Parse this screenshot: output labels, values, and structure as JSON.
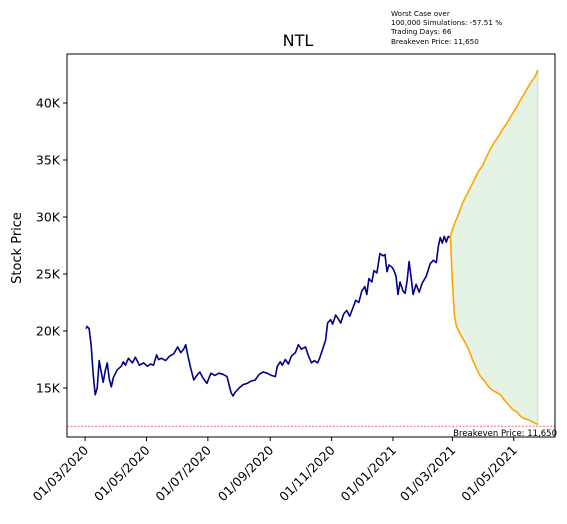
{
  "chart_data": {
    "type": "line",
    "title": "NTL",
    "xlabel": "",
    "ylabel": "Stock Price",
    "x_ticks": [
      "01/03/2020",
      "01/05/2020",
      "01/07/2020",
      "01/09/2020",
      "01/11/2020",
      "01/01/2021",
      "01/03/2021",
      "01/05/2021"
    ],
    "y_ticks": [
      "15K",
      "20K",
      "25K",
      "30K",
      "35K",
      "40K"
    ],
    "y_tick_values": [
      15000,
      20000,
      25000,
      30000,
      35000,
      40000
    ],
    "ylim": [
      10700,
      44300
    ],
    "xlim": [
      "2020-02-12",
      "2021-06-11"
    ],
    "grid": false,
    "annotations": {
      "lines": [
        "Worst Case over",
        "100,000 Simulations: -57.51 %",
        "Trading Days: 66",
        "Breakeven Price: 11,650"
      ]
    },
    "breakeven": {
      "value": 11650,
      "label": "Breakeven Price: 11,650",
      "color": "#d62728"
    },
    "series": [
      {
        "name": "",
        "role": "historical",
        "color": "#00008b",
        "points": [
          [
            "2020-03-02",
            20200
          ],
          [
            "2020-03-03",
            20400
          ],
          [
            "2020-03-05",
            20200
          ],
          [
            "2020-03-07",
            18800
          ],
          [
            "2020-03-09",
            16200
          ],
          [
            "2020-03-11",
            14400
          ],
          [
            "2020-03-13",
            15000
          ],
          [
            "2020-03-15",
            17400
          ],
          [
            "2020-03-17",
            16400
          ],
          [
            "2020-03-19",
            15500
          ],
          [
            "2020-03-21",
            16500
          ],
          [
            "2020-03-23",
            17200
          ],
          [
            "2020-03-25",
            15800
          ],
          [
            "2020-03-27",
            15100
          ],
          [
            "2020-03-29",
            15900
          ],
          [
            "2020-04-02",
            16600
          ],
          [
            "2020-04-06",
            16900
          ],
          [
            "2020-04-08",
            17300
          ],
          [
            "2020-04-10",
            17000
          ],
          [
            "2020-04-13",
            17600
          ],
          [
            "2020-04-17",
            17200
          ],
          [
            "2020-04-20",
            17700
          ],
          [
            "2020-04-24",
            17000
          ],
          [
            "2020-04-28",
            17200
          ],
          [
            "2020-05-02",
            16900
          ],
          [
            "2020-05-05",
            17100
          ],
          [
            "2020-05-08",
            17000
          ],
          [
            "2020-05-11",
            17900
          ],
          [
            "2020-05-13",
            17500
          ],
          [
            "2020-05-16",
            17600
          ],
          [
            "2020-05-20",
            17400
          ],
          [
            "2020-05-24",
            17800
          ],
          [
            "2020-05-28",
            18000
          ],
          [
            "2020-06-01",
            18600
          ],
          [
            "2020-06-04",
            18100
          ],
          [
            "2020-06-07",
            18400
          ],
          [
            "2020-06-09",
            18800
          ],
          [
            "2020-06-11",
            17900
          ],
          [
            "2020-06-14",
            16700
          ],
          [
            "2020-06-17",
            15700
          ],
          [
            "2020-06-20",
            16100
          ],
          [
            "2020-06-23",
            16400
          ],
          [
            "2020-06-26",
            15900
          ],
          [
            "2020-06-30",
            15400
          ],
          [
            "2020-07-04",
            16300
          ],
          [
            "2020-07-08",
            16100
          ],
          [
            "2020-07-12",
            16300
          ],
          [
            "2020-07-16",
            16200
          ],
          [
            "2020-07-20",
            16000
          ],
          [
            "2020-07-24",
            14600
          ],
          [
            "2020-07-26",
            14300
          ],
          [
            "2020-07-28",
            14600
          ],
          [
            "2020-08-01",
            15000
          ],
          [
            "2020-08-05",
            15300
          ],
          [
            "2020-08-09",
            15400
          ],
          [
            "2020-08-13",
            15600
          ],
          [
            "2020-08-17",
            15700
          ],
          [
            "2020-08-21",
            16200
          ],
          [
            "2020-08-25",
            16400
          ],
          [
            "2020-08-29",
            16300
          ],
          [
            "2020-09-02",
            16100
          ],
          [
            "2020-09-06",
            16000
          ],
          [
            "2020-09-08",
            16900
          ],
          [
            "2020-09-11",
            17300
          ],
          [
            "2020-09-13",
            17000
          ],
          [
            "2020-09-16",
            17500
          ],
          [
            "2020-09-19",
            17100
          ],
          [
            "2020-09-22",
            17800
          ],
          [
            "2020-09-26",
            18100
          ],
          [
            "2020-09-29",
            18800
          ],
          [
            "2020-10-02",
            18400
          ],
          [
            "2020-10-06",
            18600
          ],
          [
            "2020-10-09",
            17800
          ],
          [
            "2020-10-12",
            17200
          ],
          [
            "2020-10-15",
            17400
          ],
          [
            "2020-10-18",
            17200
          ],
          [
            "2020-10-20",
            17600
          ],
          [
            "2020-10-23",
            18400
          ],
          [
            "2020-10-26",
            19200
          ],
          [
            "2020-10-28",
            20700
          ],
          [
            "2020-10-31",
            21000
          ],
          [
            "2020-11-02",
            20600
          ],
          [
            "2020-11-05",
            21400
          ],
          [
            "2020-11-08",
            21000
          ],
          [
            "2020-11-10",
            20700
          ],
          [
            "2020-11-13",
            21500
          ],
          [
            "2020-11-16",
            21800
          ],
          [
            "2020-11-19",
            21300
          ],
          [
            "2020-11-22",
            22000
          ],
          [
            "2020-11-25",
            22700
          ],
          [
            "2020-11-28",
            22500
          ],
          [
            "2020-12-01",
            23500
          ],
          [
            "2020-12-04",
            23900
          ],
          [
            "2020-12-06",
            23200
          ],
          [
            "2020-12-08",
            24600
          ],
          [
            "2020-12-11",
            24300
          ],
          [
            "2020-12-13",
            25300
          ],
          [
            "2020-12-16",
            25100
          ],
          [
            "2020-12-19",
            26800
          ],
          [
            "2020-12-22",
            26600
          ],
          [
            "2020-12-24",
            26700
          ],
          [
            "2020-12-26",
            25200
          ],
          [
            "2020-12-28",
            25800
          ],
          [
            "2020-12-31",
            25600
          ],
          [
            "2021-01-02",
            25300
          ],
          [
            "2021-01-04",
            24800
          ],
          [
            "2021-01-06",
            23200
          ],
          [
            "2021-01-08",
            24300
          ],
          [
            "2021-01-11",
            23500
          ],
          [
            "2021-01-13",
            23300
          ],
          [
            "2021-01-15",
            24400
          ],
          [
            "2021-01-17",
            26100
          ],
          [
            "2021-01-19",
            24700
          ],
          [
            "2021-01-21",
            23200
          ],
          [
            "2021-01-24",
            24100
          ],
          [
            "2021-01-27",
            23400
          ],
          [
            "2021-01-30",
            24200
          ],
          [
            "2021-02-03",
            24800
          ],
          [
            "2021-02-07",
            25900
          ],
          [
            "2021-02-10",
            26200
          ],
          [
            "2021-02-13",
            26000
          ],
          [
            "2021-02-15",
            27400
          ],
          [
            "2021-02-17",
            28200
          ],
          [
            "2021-02-19",
            27700
          ],
          [
            "2021-02-21",
            28300
          ],
          [
            "2021-02-23",
            27800
          ],
          [
            "2021-02-25",
            28300
          ],
          [
            "2021-02-27",
            28200
          ]
        ]
      },
      {
        "name": "",
        "role": "simulated-upper",
        "color": "#ffa500",
        "points": [
          [
            "2021-02-27",
            28300
          ],
          [
            "2021-03-03",
            29400
          ],
          [
            "2021-03-07",
            30200
          ],
          [
            "2021-03-11",
            31200
          ],
          [
            "2021-03-15",
            31900
          ],
          [
            "2021-03-19",
            32600
          ],
          [
            "2021-03-23",
            33300
          ],
          [
            "2021-03-27",
            34000
          ],
          [
            "2021-03-31",
            34500
          ],
          [
            "2021-04-04",
            35300
          ],
          [
            "2021-04-08",
            36000
          ],
          [
            "2021-04-12",
            36600
          ],
          [
            "2021-04-16",
            37100
          ],
          [
            "2021-04-20",
            37700
          ],
          [
            "2021-04-24",
            38200
          ],
          [
            "2021-04-28",
            38800
          ],
          [
            "2021-05-02",
            39400
          ],
          [
            "2021-05-06",
            40000
          ],
          [
            "2021-05-10",
            40600
          ],
          [
            "2021-05-14",
            41200
          ],
          [
            "2021-05-18",
            41800
          ],
          [
            "2021-05-22",
            42300
          ],
          [
            "2021-05-25",
            42900
          ]
        ]
      },
      {
        "name": "",
        "role": "simulated-lower",
        "color": "#ffa500",
        "points": [
          [
            "2021-02-27",
            28300
          ],
          [
            "2021-03-01",
            24200
          ],
          [
            "2021-03-03",
            21400
          ],
          [
            "2021-03-05",
            20400
          ],
          [
            "2021-03-09",
            19700
          ],
          [
            "2021-03-13",
            19100
          ],
          [
            "2021-03-17",
            18400
          ],
          [
            "2021-03-21",
            17500
          ],
          [
            "2021-03-25",
            16700
          ],
          [
            "2021-03-29",
            16000
          ],
          [
            "2021-04-02",
            15600
          ],
          [
            "2021-04-06",
            15100
          ],
          [
            "2021-04-10",
            14800
          ],
          [
            "2021-04-14",
            14600
          ],
          [
            "2021-04-18",
            14400
          ],
          [
            "2021-04-22",
            13900
          ],
          [
            "2021-04-26",
            13500
          ],
          [
            "2021-04-30",
            13100
          ],
          [
            "2021-05-04",
            12900
          ],
          [
            "2021-05-08",
            12500
          ],
          [
            "2021-05-12",
            12300
          ],
          [
            "2021-05-16",
            12200
          ],
          [
            "2021-05-20",
            12000
          ],
          [
            "2021-05-25",
            11800
          ]
        ]
      }
    ],
    "fill": {
      "between": [
        "simulated-upper",
        "simulated-lower"
      ],
      "color": "#2ca02c",
      "opacity": 0.12
    }
  }
}
